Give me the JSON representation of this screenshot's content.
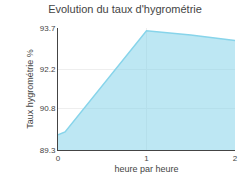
{
  "chart_data": {
    "type": "area",
    "title": "Evolution du taux d'hygrométrie",
    "xlabel": "heure par heure",
    "ylabel": "Taux hygrométrie %",
    "x": [
      0.0,
      0.08,
      1.0,
      1.5,
      2.0
    ],
    "values": [
      89.85,
      89.95,
      93.6,
      93.45,
      93.25
    ],
    "color": "#87d4ea",
    "xlim": [
      0,
      2
    ],
    "ylim": [
      89.3,
      93.7
    ],
    "xticks": [
      0,
      1,
      2
    ],
    "yticks": [
      89.3,
      90.8,
      92.2,
      93.7
    ],
    "grid": true
  }
}
